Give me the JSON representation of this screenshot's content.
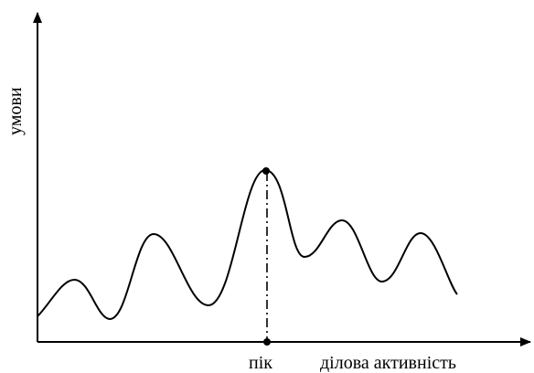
{
  "labels": {
    "y_axis": "умови",
    "peak": "пік",
    "x_axis": "ділова активність"
  },
  "colors": {
    "stroke": "#000000",
    "background": "#ffffff"
  }
}
